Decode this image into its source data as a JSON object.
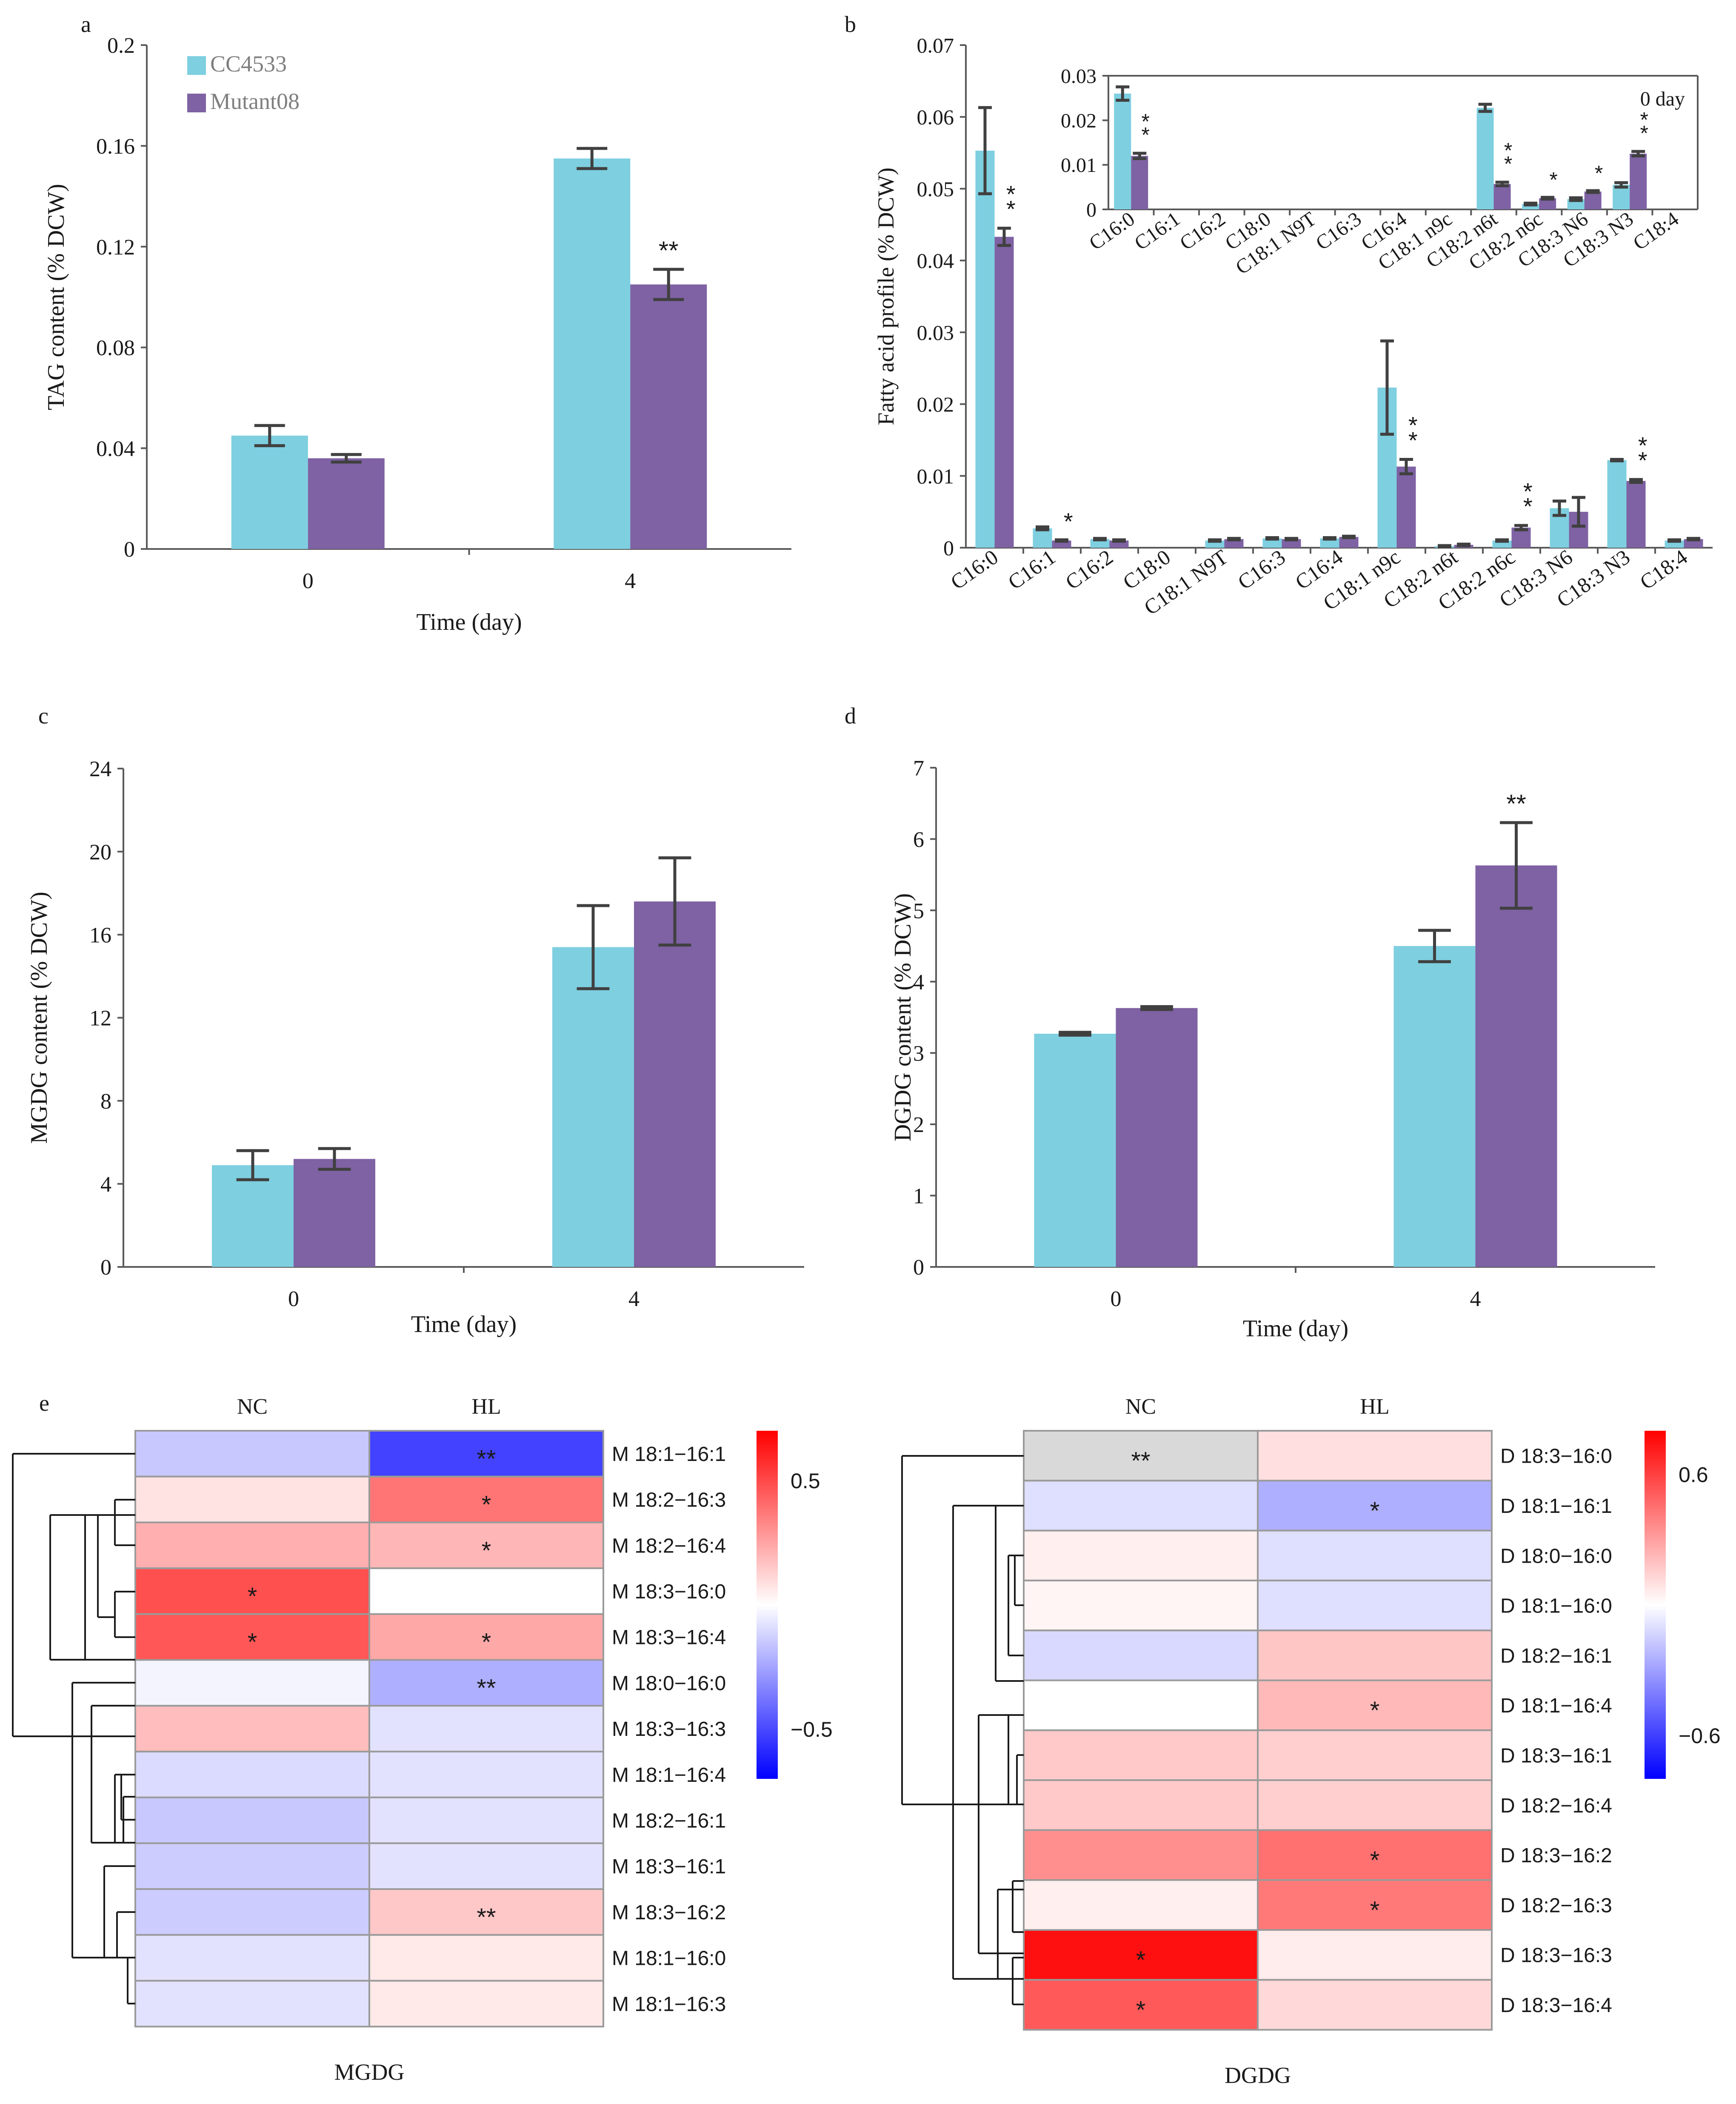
{
  "colors": {
    "cc4533": "#7ecfe0",
    "mutant08": "#7e62a3",
    "axis": "#595959"
  },
  "legend": [
    "CC4533",
    "Mutant08"
  ],
  "chart_data": [
    {
      "id": "a",
      "panel_label": "a",
      "type": "bar",
      "categories": [
        "0",
        "4"
      ],
      "series": [
        {
          "name": "CC4533",
          "values": [
            0.045,
            0.155
          ],
          "errors": [
            0.004,
            0.004
          ]
        },
        {
          "name": "Mutant08",
          "values": [
            0.036,
            0.105
          ],
          "errors": [
            0.0015,
            0.006
          ]
        }
      ],
      "sig": [
        {
          "cat": 1,
          "series": 1,
          "text": "**"
        }
      ],
      "xlabel": "Time (day)",
      "ylabel": "TAG content (% DCW)",
      "ylim": [
        0,
        0.2
      ],
      "yticks": [
        {
          "v": 0,
          "t": "0"
        },
        {
          "v": 0.04,
          "t": "0.04"
        },
        {
          "v": 0.08,
          "t": "0.08"
        },
        {
          "v": 0.12,
          "t": "0.12"
        },
        {
          "v": 0.16,
          "t": "0.16"
        },
        {
          "v": 0.2,
          "t": "0.2"
        }
      ]
    },
    {
      "id": "b",
      "panel_label": "b",
      "type": "bar",
      "categories": [
        "C16:0",
        "C16:1",
        "C16:2",
        "C18:0",
        "C18:1 N9T",
        "C16:3",
        "C16:4",
        "C18:1 n9c",
        "C18:2 n6t",
        "C18:2 n6c",
        "C18:3 N6",
        "C18:3 N3",
        "C18:4"
      ],
      "series": [
        {
          "name": "CC4533",
          "values": [
            0.0553,
            0.0027,
            0.0012,
            0,
            0.001,
            0.0013,
            0.0013,
            0.0223,
            0.0002,
            0.001,
            0.0055,
            0.0122,
            0.001
          ],
          "errors": [
            0.006,
            0.0002,
            0.0001,
            0,
            0.0001,
            0.0001,
            0.0001,
            0.0065,
            0.0001,
            0.0001,
            0.001,
            0.0001,
            0.0001
          ]
        },
        {
          "name": "Mutant08",
          "values": [
            0.0433,
            0.001,
            0.001,
            0,
            0.0012,
            0.0012,
            0.0015,
            0.0113,
            0.0004,
            0.0028,
            0.005,
            0.0093,
            0.0012
          ],
          "errors": [
            0.0012,
            0.0001,
            0.0001,
            0,
            0.0001,
            0.0001,
            0.0001,
            0.001,
            0.0001,
            0.0003,
            0.002,
            0.0002,
            0.0001
          ]
        }
      ],
      "sig": [
        {
          "cat": 0,
          "series": 1,
          "text": "**"
        },
        {
          "cat": 1,
          "series": 1,
          "text": "*"
        },
        {
          "cat": 7,
          "series": 1,
          "text": "**"
        },
        {
          "cat": 9,
          "series": 1,
          "text": "**"
        },
        {
          "cat": 11,
          "series": 1,
          "text": "**"
        }
      ],
      "xlabel": "",
      "ylabel": "Fatty acid profile (% DCW)",
      "ylim": [
        0,
        0.07
      ],
      "yticks": [
        {
          "v": 0,
          "t": "0"
        },
        {
          "v": 0.01,
          "t": "0.01"
        },
        {
          "v": 0.02,
          "t": "0.02"
        },
        {
          "v": 0.03,
          "t": "0.03"
        },
        {
          "v": 0.04,
          "t": "0.04"
        },
        {
          "v": 0.05,
          "t": "0.05"
        },
        {
          "v": 0.06,
          "t": "0.06"
        },
        {
          "v": 0.07,
          "t": "0.07"
        }
      ]
    },
    {
      "id": "b_inset",
      "type": "bar",
      "title": "0 day",
      "categories": [
        "C16:0",
        "C16:1",
        "C16:2",
        "C18:0",
        "C18:1 N9T",
        "C16:3",
        "C16:4",
        "C18:1 n9c",
        "C18:2 n6t",
        "C18:2 n6c",
        "C18:3 N6",
        "C18:3 N3",
        "C18:4"
      ],
      "series": [
        {
          "name": "CC4533",
          "values": [
            0.026,
            0,
            0,
            0,
            0,
            0,
            0,
            0,
            0.0228,
            0.0012,
            0.0023,
            0.0055,
            0
          ],
          "errors": [
            0.0015,
            0,
            0,
            0,
            0,
            0,
            0,
            0,
            0.0008,
            0.0002,
            0.0003,
            0.0005,
            0
          ]
        },
        {
          "name": "Mutant08",
          "values": [
            0.012,
            0,
            0,
            0,
            0,
            0,
            0,
            0,
            0.0057,
            0.0025,
            0.004,
            0.0125,
            0
          ],
          "errors": [
            0.0006,
            0,
            0,
            0,
            0,
            0,
            0,
            0,
            0.0004,
            0.0002,
            0.0002,
            0.0005,
            0
          ]
        }
      ],
      "sig": [
        {
          "cat": 0,
          "series": 1,
          "text": "**"
        },
        {
          "cat": 8,
          "series": 1,
          "text": "**"
        },
        {
          "cat": 9,
          "series": 1,
          "text": "*"
        },
        {
          "cat": 10,
          "series": 1,
          "text": "*"
        },
        {
          "cat": 11,
          "series": 1,
          "text": "**"
        }
      ],
      "ylim": [
        0,
        0.03
      ],
      "yticks": [
        {
          "v": 0,
          "t": "0"
        },
        {
          "v": 0.01,
          "t": "0.01"
        },
        {
          "v": 0.02,
          "t": "0.02"
        },
        {
          "v": 0.03,
          "t": "0.03"
        }
      ]
    },
    {
      "id": "c",
      "panel_label": "c",
      "type": "bar",
      "categories": [
        "0",
        "4"
      ],
      "series": [
        {
          "name": "CC4533",
          "values": [
            4.9,
            15.4
          ],
          "errors": [
            0.7,
            2.0
          ]
        },
        {
          "name": "Mutant08",
          "values": [
            5.2,
            17.6
          ],
          "errors": [
            0.5,
            2.1
          ]
        }
      ],
      "sig": [],
      "xlabel": "Time (day)",
      "ylabel": "MGDG content (% DCW)",
      "ylim": [
        0,
        24
      ],
      "yticks": [
        {
          "v": 0,
          "t": "0"
        },
        {
          "v": 4,
          "t": "4"
        },
        {
          "v": 8,
          "t": "8"
        },
        {
          "v": 12,
          "t": "12"
        },
        {
          "v": 16,
          "t": "16"
        },
        {
          "v": 20,
          "t": "20"
        },
        {
          "v": 24,
          "t": "24"
        }
      ]
    },
    {
      "id": "d",
      "panel_label": "d",
      "type": "bar",
      "categories": [
        "0",
        "4"
      ],
      "series": [
        {
          "name": "CC4533",
          "values": [
            3.27,
            4.5
          ],
          "errors": [
            0.02,
            0.22
          ]
        },
        {
          "name": "Mutant08",
          "values": [
            3.63,
            5.63
          ],
          "errors": [
            0.02,
            0.6
          ]
        }
      ],
      "sig": [
        {
          "cat": 1,
          "series": 1,
          "text": "**"
        }
      ],
      "xlabel": "Time (day)",
      "ylabel": "DGDG content (% DCW)",
      "ylim": [
        0,
        7
      ],
      "yticks": [
        {
          "v": 0,
          "t": "0"
        },
        {
          "v": 1,
          "t": "1"
        },
        {
          "v": 2,
          "t": "2"
        },
        {
          "v": 3,
          "t": "3"
        },
        {
          "v": 4,
          "t": "4"
        },
        {
          "v": 5,
          "t": "5"
        },
        {
          "v": 6,
          "t": "6"
        },
        {
          "v": 7,
          "t": "7"
        }
      ]
    },
    {
      "id": "e_mgdg",
      "panel_label": "e",
      "type": "heatmap",
      "columns": [
        "NC",
        "HL"
      ],
      "rows": [
        "M 18:1−16:1",
        "M 18:2−16:3",
        "M 18:2−16:4",
        "M 18:3−16:0",
        "M 18:3−16:4",
        "M 18:0−16:0",
        "M 18:3−16:3",
        "M 18:1−16:4",
        "M 18:2−16:1",
        "M 18:3−16:1",
        "M 18:3−16:2",
        "M 18:1−16:0",
        "M 18:1−16:3"
      ],
      "values": [
        [
          -0.15,
          -0.52
        ],
        [
          0.08,
          0.38
        ],
        [
          0.22,
          0.2
        ],
        [
          0.48,
          0.0
        ],
        [
          0.46,
          0.24
        ],
        [
          -0.03,
          -0.22
        ],
        [
          0.18,
          -0.08
        ],
        [
          -0.1,
          -0.08
        ],
        [
          -0.15,
          -0.08
        ],
        [
          -0.14,
          -0.08
        ],
        [
          -0.14,
          0.15
        ],
        [
          -0.08,
          0.06
        ],
        [
          -0.08,
          0.06
        ]
      ],
      "stars": [
        [
          "",
          "**"
        ],
        [
          "",
          "*"
        ],
        [
          "",
          "*"
        ],
        [
          "*",
          ""
        ],
        [
          "*",
          "*"
        ],
        [
          "",
          "**"
        ],
        [
          "",
          ""
        ],
        [
          "",
          ""
        ],
        [
          "",
          ""
        ],
        [
          "",
          ""
        ],
        [
          "",
          "**"
        ],
        [
          "",
          ""
        ],
        [
          "",
          ""
        ]
      ],
      "xlabel": "MGDG",
      "colorbar": {
        "min": -0.7,
        "max": 0.7,
        "ticks": [
          {
            "v": 0.5,
            "t": "0.5"
          },
          {
            "v": -0.5,
            "t": "−0.5"
          }
        ]
      }
    },
    {
      "id": "e_dgdg",
      "type": "heatmap",
      "columns": [
        "NC",
        "HL"
      ],
      "rows": [
        "D 18:3−16:0",
        "D 18:1−16:1",
        "D 18:0−16:0",
        "D 18:1−16:0",
        "D 18:2−16:1",
        "D 18:1−16:4",
        "D 18:3−16:1",
        "D 18:2−16:4",
        "D 18:3−16:2",
        "D 18:2−16:3",
        "D 18:3−16:3",
        "D 18:3−16:4"
      ],
      "values": [
        [
          null,
          0.1
        ],
        [
          -0.1,
          -0.25
        ],
        [
          0.05,
          -0.1
        ],
        [
          0.03,
          -0.1
        ],
        [
          -0.12,
          0.18
        ],
        [
          0.0,
          0.22
        ],
        [
          0.17,
          0.15
        ],
        [
          0.17,
          0.15
        ],
        [
          0.35,
          0.45
        ],
        [
          0.05,
          0.42
        ],
        [
          0.75,
          0.06
        ],
        [
          0.52,
          0.12
        ]
      ],
      "stars": [
        [
          "**",
          ""
        ],
        [
          "",
          "*"
        ],
        [
          "",
          ""
        ],
        [
          "",
          ""
        ],
        [
          "",
          ""
        ],
        [
          "",
          "*"
        ],
        [
          "",
          ""
        ],
        [
          "",
          ""
        ],
        [
          "",
          "*"
        ],
        [
          "",
          "*"
        ],
        [
          "*",
          ""
        ],
        [
          "*",
          ""
        ]
      ],
      "xlabel": "DGDG",
      "colorbar": {
        "min": -0.8,
        "max": 0.8,
        "ticks": [
          {
            "v": 0.6,
            "t": "0.6"
          },
          {
            "v": -0.6,
            "t": "−0.6"
          }
        ]
      }
    }
  ]
}
